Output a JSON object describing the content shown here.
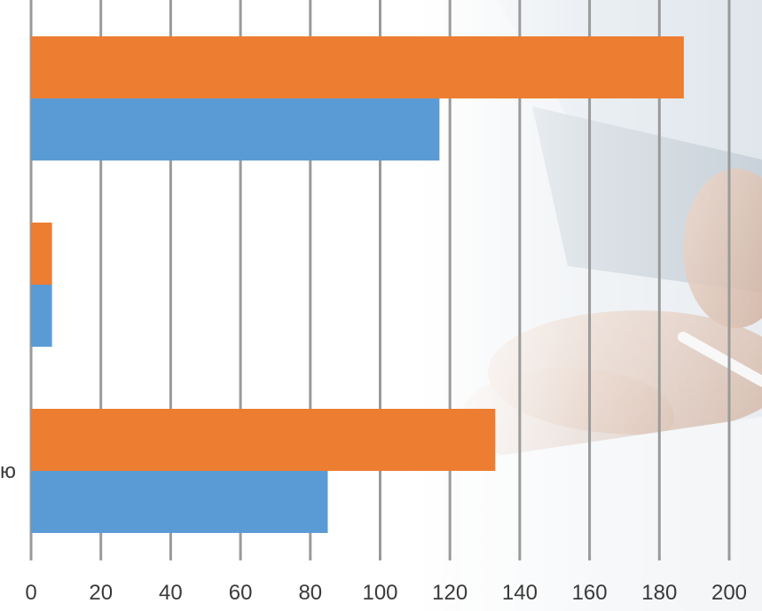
{
  "chart_data": {
    "type": "bar",
    "orientation": "horizontal",
    "categories": [
      "",
      "",
      "ю"
    ],
    "series": [
      {
        "color": "#ED7D31",
        "values": [
          187,
          6,
          133
        ]
      },
      {
        "color": "#5B9BD5",
        "values": [
          117,
          6,
          85
        ]
      }
    ],
    "xlim": [
      0,
      200
    ],
    "x_ticks": [
      "0",
      "20",
      "40",
      "60",
      "80",
      "100",
      "120",
      "140",
      "160",
      "180",
      "200"
    ],
    "grid": true,
    "gridline_color": "#9a9a9a",
    "background": "photo of hands with a pen and paper on a desk, faded to white on the left"
  }
}
